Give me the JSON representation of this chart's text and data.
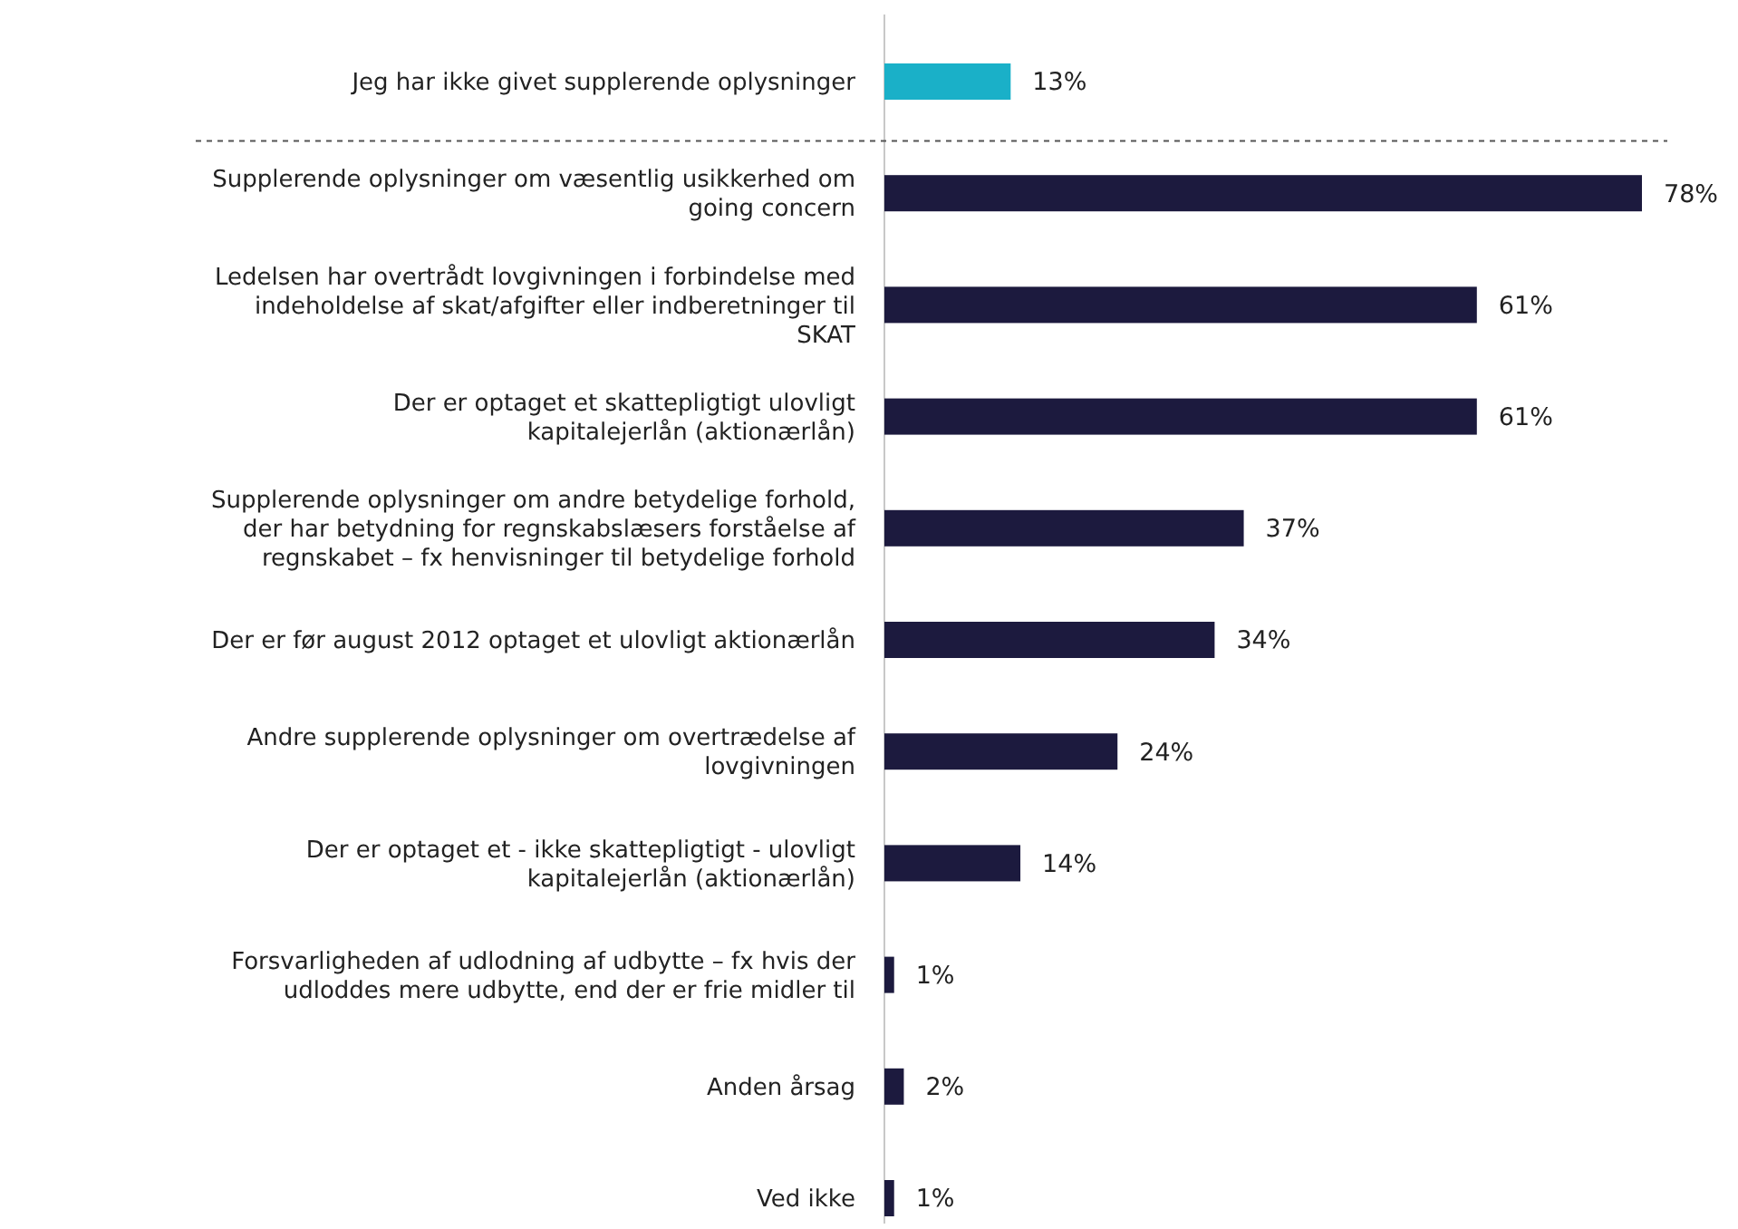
{
  "chart_data": {
    "type": "bar",
    "orientation": "horizontal",
    "categories": [
      "Jeg har ikke givet supplerende oplysninger",
      "Supplerende oplysninger om væsentlig usikkerhed om going concern",
      "Ledelsen har overtrådt lovgivningen i forbindelse med indeholdelse af skat/afgifter eller indberetninger til SKAT",
      "Der er optaget et skattepligtigt ulovligt kapitalejerlån (aktionærlån)",
      "Supplerende oplysninger om andre betydelige forhold, der har betydning for regnskabslæsers forståelse af regnskabet – fx henvisninger til betydelige forhold",
      "Der er før august 2012 optaget et ulovligt aktionærlån",
      "Andre supplerende oplysninger om overtrædelse af lovgivningen",
      "Der er optaget et - ikke skattepligtigt - ulovligt kapitalejerlån (aktionærlån)",
      "Forsvarligheden af udlodning af udbytte – fx hvis der udloddes mere udbytte, end der er frie midler til",
      "Anden årsag",
      "Ved ikke"
    ],
    "values": [
      13,
      78,
      61,
      61,
      37,
      34,
      24,
      14,
      1,
      2,
      1
    ],
    "value_labels": [
      "13%",
      "78%",
      "61%",
      "61%",
      "37%",
      "34%",
      "24%",
      "14%",
      "1%",
      "2%",
      "1%"
    ],
    "colors": [
      "#1ab0c8",
      "#1c1a3e",
      "#1c1a3e",
      "#1c1a3e",
      "#1c1a3e",
      "#1c1a3e",
      "#1c1a3e",
      "#1c1a3e",
      "#1c1a3e",
      "#1c1a3e",
      "#1c1a3e"
    ]
  }
}
